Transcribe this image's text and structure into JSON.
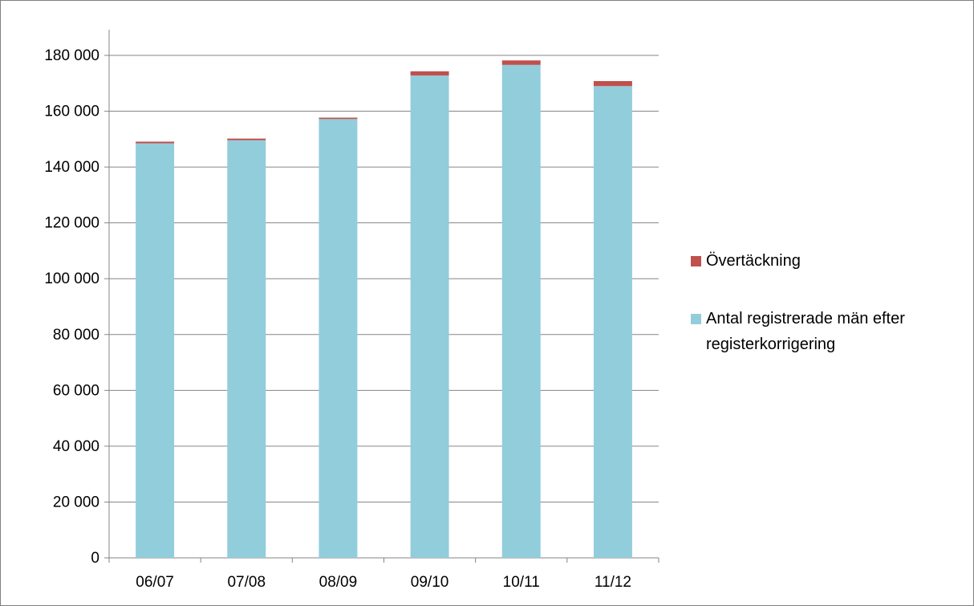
{
  "chart_data": {
    "type": "bar",
    "stacked": true,
    "title": "",
    "xlabel": "",
    "ylabel": "",
    "categories": [
      "06/07",
      "07/08",
      "08/09",
      "09/10",
      "10/11",
      "11/12"
    ],
    "series": [
      {
        "name": "Antal registrerade män efter registerkorrigering",
        "color": "#92cddc",
        "values": [
          148500,
          149600,
          157200,
          172800,
          176600,
          169000
        ]
      },
      {
        "name": "Övertäckning",
        "color": "#c0504d",
        "values": [
          600,
          600,
          500,
          1500,
          1600,
          1800
        ]
      }
    ],
    "ylim": [
      0,
      180000
    ],
    "yticks": [
      "0",
      "20 000",
      "40 000",
      "60 000",
      "80 000",
      "100 000",
      "120 000",
      "140 000",
      "160 000",
      "180 000"
    ],
    "ytick_values": [
      0,
      20000,
      40000,
      60000,
      80000,
      100000,
      120000,
      140000,
      160000,
      180000
    ],
    "grid": true,
    "legend_position": "right",
    "legend_order": [
      "Övertäckning",
      "Antal registrerade män efter registerkorrigering"
    ]
  }
}
